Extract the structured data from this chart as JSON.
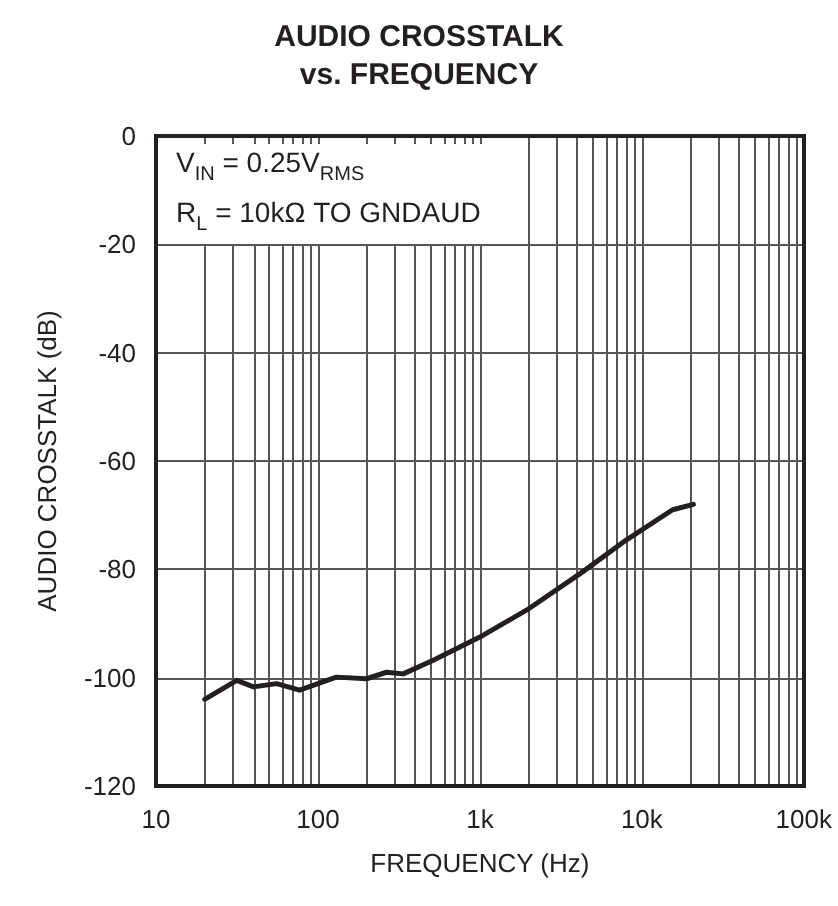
{
  "chart_data": {
    "type": "line",
    "title": "AUDIO CROSSTALK\nvs. FREQUENCY",
    "xlabel": "FREQUENCY (Hz)",
    "ylabel": "AUDIO CROSSTALK (dB)",
    "annotations": [
      "V$_{IN}$ = 0.25V$_{RMS}$",
      "R$_{L}$ = 10kΩ TO GNDAUD"
    ],
    "log": "x",
    "grid": true,
    "marker": "none",
    "line_style": "solid",
    "xlim": [
      10,
      100000
    ],
    "xticks": [
      10,
      100,
      {
        "value": 1000,
        "label": "1k"
      },
      {
        "value": 10000,
        "label": "10k"
      },
      {
        "value": 100000,
        "label": "100k"
      }
    ],
    "ylim": [
      -120,
      0
    ],
    "yticks": [
      -120,
      -100,
      -80,
      -60,
      -40,
      -20,
      0
    ],
    "series": [
      {
        "color": "#231f20",
        "x": [
          20,
          31.5,
          40,
          55.6,
          77,
          130,
          200,
          265,
          336,
          515,
          1000,
          1950,
          4200,
          8000,
          15500,
          20800
        ],
        "values": [
          -104,
          -100.5,
          -101.7,
          -101.1,
          -102.3,
          -99.9,
          -100.2,
          -99,
          -99.3,
          -96.8,
          -92.5,
          -87.5,
          -80.7,
          -74.6,
          -69,
          -68
        ]
      }
    ]
  }
}
